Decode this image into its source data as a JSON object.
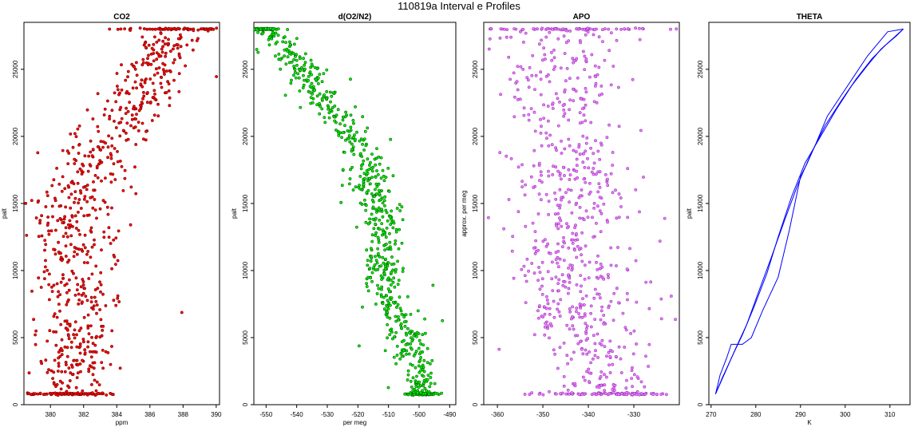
{
  "figure": {
    "title": "110819a   Interval e Profiles"
  },
  "chart_data": [
    {
      "type": "scatter",
      "title": "CO2",
      "xlabel": "ppm",
      "ylabel": "palt",
      "xlim": [
        378.4,
        390.2
      ],
      "ylim": [
        0,
        28500
      ],
      "xticks": [
        380,
        382,
        384,
        386,
        388,
        390
      ],
      "yticks": [
        0,
        5000,
        10000,
        15000,
        20000,
        25000
      ],
      "marker_fill": "#ff0000",
      "marker_edge": "#7a0000",
      "series": [
        {
          "altitude": [
            800,
            2500,
            5000,
            7500,
            10000,
            12500,
            15000,
            17500,
            20000,
            22500,
            25000,
            27000,
            28000
          ],
          "mean_value": [
            381.1,
            381.3,
            381.5,
            381.6,
            381.4,
            381.4,
            381.6,
            382.3,
            383.6,
            385.0,
            386.3,
            386.9,
            388.0
          ],
          "spread": [
            1.0,
            1.0,
            1.1,
            1.1,
            1.2,
            1.3,
            1.3,
            1.2,
            1.1,
            1.0,
            1.0,
            0.9,
            1.2
          ]
        }
      ]
    },
    {
      "type": "scatter",
      "title": "d(O2/N2)",
      "xlabel": "per meg",
      "ylabel": "palt",
      "xlim": [
        -554,
        -488
      ],
      "ylim": [
        0,
        28500
      ],
      "xticks": [
        -550,
        -540,
        -530,
        -520,
        -510,
        -500,
        -490
      ],
      "yticks": [
        0,
        5000,
        10000,
        15000,
        20000,
        25000
      ],
      "marker_fill": "#00ee00",
      "marker_edge": "#006400",
      "series": [
        {
          "altitude": [
            800,
            2500,
            5000,
            7500,
            10000,
            12500,
            15000,
            17500,
            20000,
            22500,
            25000,
            27000,
            28000
          ],
          "mean_value": [
            -499,
            -500,
            -504,
            -509,
            -512,
            -512,
            -513,
            -517,
            -522,
            -530,
            -537,
            -545,
            -550
          ],
          "spread": [
            2,
            3,
            3,
            3,
            3,
            3,
            3,
            3,
            3,
            3,
            3,
            3,
            2
          ]
        }
      ]
    },
    {
      "type": "scatter",
      "title": "APO",
      "xlabel": "",
      "ylabel": "approx. per meg",
      "xlim": [
        -363,
        -320
      ],
      "ylim": [
        0,
        28500
      ],
      "xticks": [
        -360,
        -350,
        -340,
        -330
      ],
      "yticks": [
        0,
        5000,
        10000,
        15000,
        20000,
        25000
      ],
      "marker_fill": "#ee82ee",
      "marker_edge": "#9a30c8",
      "series": [
        {
          "altitude": [
            800,
            2500,
            5000,
            10000,
            15000,
            20000,
            25000,
            28000
          ],
          "mean_value": [
            -337,
            -338,
            -341,
            -344,
            -344,
            -344,
            -345,
            -346
          ],
          "spread": [
            6,
            6,
            6,
            6,
            6,
            6,
            6,
            8
          ]
        }
      ]
    },
    {
      "type": "line",
      "title": "THETA",
      "xlabel": "K",
      "ylabel": "palt",
      "xlim": [
        269.5,
        314.5
      ],
      "ylim": [
        0,
        28500
      ],
      "xticks": [
        270,
        280,
        290,
        300,
        310
      ],
      "yticks": [
        0,
        5000,
        10000,
        15000,
        20000,
        25000
      ],
      "line_color": "#0000ff",
      "series": [
        {
          "name": "",
          "x": [
            271.0,
            272.0,
            273.5,
            274.5,
            277.0,
            279.0,
            281.5,
            285.0,
            287.5,
            290.0,
            291.5,
            293.5,
            296.0,
            299.0,
            302.0,
            305.0,
            307.5,
            309.5,
            313.0
          ],
          "y": [
            800,
            2200,
            3500,
            4500,
            4500,
            5000,
            7000,
            9500,
            13000,
            17000,
            18000,
            19500,
            21500,
            23000,
            24500,
            26000,
            27000,
            27800,
            28000
          ]
        },
        {
          "name": "",
          "x": [
            271.0,
            272.5,
            275.0,
            277.0,
            279.5,
            282.5,
            285.0,
            288.0,
            291.0,
            294.5,
            298.0,
            301.5,
            305.0,
            308.0,
            311.0,
            313.0
          ],
          "y": [
            800,
            2000,
            3800,
            5200,
            7200,
            9800,
            12500,
            15500,
            18000,
            20000,
            22000,
            23800,
            25300,
            26500,
            27400,
            28000
          ]
        },
        {
          "name": "",
          "x": [
            271.0,
            273.0,
            275.5,
            278.0,
            280.5,
            283.5,
            286.5,
            289.5,
            292.5,
            295.5,
            299.0,
            302.5,
            306.0,
            309.0,
            311.5,
            313.0
          ],
          "y": [
            800,
            2300,
            4200,
            6000,
            8300,
            11000,
            13800,
            16500,
            18800,
            20800,
            22600,
            24300,
            25800,
            26800,
            27500,
            28000
          ]
        }
      ]
    }
  ]
}
